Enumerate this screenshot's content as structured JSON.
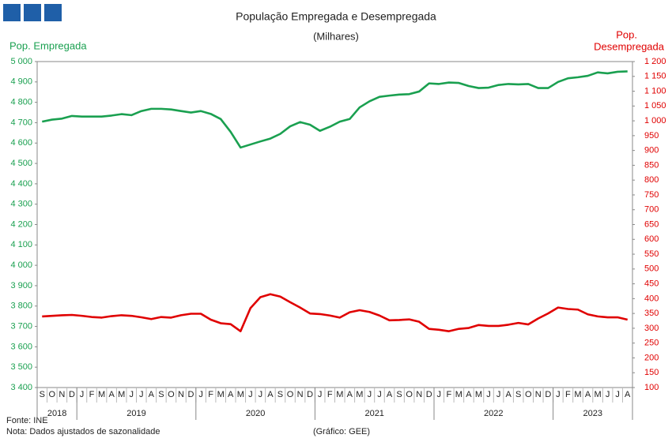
{
  "chart_data": {
    "type": "line",
    "title": "População Empregada e Desempregada",
    "subtitle": "(Milhares)",
    "y_label": "Pop. Empregada",
    "y2_label": [
      "Pop.",
      "Desempregada"
    ],
    "categories": [
      "S",
      "O",
      "N",
      "D",
      "J",
      "F",
      "M",
      "A",
      "M",
      "J",
      "J",
      "A",
      "S",
      "O",
      "N",
      "D",
      "J",
      "F",
      "M",
      "A",
      "M",
      "J",
      "J",
      "A",
      "S",
      "O",
      "N",
      "D",
      "J",
      "F",
      "M",
      "A",
      "M",
      "J",
      "J",
      "A",
      "S",
      "O",
      "N",
      "D",
      "J",
      "F",
      "M",
      "A",
      "M",
      "J",
      "J",
      "A",
      "S",
      "O",
      "N",
      "D",
      "J",
      "F",
      "M",
      "A",
      "M",
      "J",
      "J",
      "A"
    ],
    "year_labels": [
      "2018",
      "2019",
      "2020",
      "2021",
      "2022",
      "2023"
    ],
    "series": [
      {
        "name": "Pop. Empregada",
        "color": "#1aa050",
        "values": [
          4705,
          4715,
          4720,
          4733,
          4730,
          4730,
          4730,
          4735,
          4742,
          4737,
          4757,
          4768,
          4768,
          4765,
          4757,
          4750,
          4757,
          4743,
          4718,
          4655,
          4578,
          4593,
          4608,
          4622,
          4645,
          4682,
          4703,
          4690,
          4660,
          4680,
          4705,
          4718,
          4775,
          4805,
          4827,
          4833,
          4838,
          4840,
          4853,
          4893,
          4890,
          4897,
          4895,
          4880,
          4870,
          4872,
          4885,
          4890,
          4888,
          4890,
          4870,
          4870,
          4900,
          4918,
          4923,
          4930,
          4947,
          4942,
          4950,
          4952
        ]
      },
      {
        "name": "Pop. Desempregada",
        "color": "#e00000",
        "axis": "y2",
        "values": [
          340,
          342,
          344,
          345,
          342,
          338,
          336,
          341,
          344,
          342,
          337,
          331,
          338,
          336,
          344,
          349,
          349,
          329,
          317,
          314,
          290,
          368,
          405,
          415,
          407,
          388,
          370,
          350,
          348,
          343,
          336,
          354,
          361,
          355,
          343,
          327,
          328,
          330,
          322,
          298,
          295,
          290,
          298,
          301,
          311,
          308,
          308,
          312,
          318,
          313,
          333,
          350,
          370,
          365,
          363,
          347,
          340,
          337,
          337,
          329
        ]
      }
    ],
    "ylim": [
      3400,
      5000
    ],
    "yticks": [
      {
        "value": 3400,
        "label": "3 400"
      },
      {
        "value": 3500,
        "label": "3 500"
      },
      {
        "value": 3600,
        "label": "3 600"
      },
      {
        "value": 3700,
        "label": "3 700"
      },
      {
        "value": 3800,
        "label": "3 800"
      },
      {
        "value": 3900,
        "label": "3 900"
      },
      {
        "value": 4000,
        "label": "4 000"
      },
      {
        "value": 4100,
        "label": "4 100"
      },
      {
        "value": 4200,
        "label": "4 200"
      },
      {
        "value": 4300,
        "label": "4 300"
      },
      {
        "value": 4400,
        "label": "4 400"
      },
      {
        "value": 4500,
        "label": "4 500"
      },
      {
        "value": 4600,
        "label": "4 600"
      },
      {
        "value": 4700,
        "label": "4 700"
      },
      {
        "value": 4800,
        "label": "4 800"
      },
      {
        "value": 4900,
        "label": "4 900"
      },
      {
        "value": 5000,
        "label": "5 000"
      }
    ],
    "y2lim": [
      100,
      1200
    ],
    "y2ticks": [
      100,
      150,
      200,
      250,
      300,
      350,
      400,
      450,
      500,
      550,
      600,
      650,
      700,
      750,
      800,
      850,
      900,
      950,
      {
        "value": 1000,
        "label": "1 000"
      },
      {
        "value": 1050,
        "label": "1 050"
      },
      {
        "value": 1100,
        "label": "1 100"
      },
      {
        "value": 1150,
        "label": "1 150"
      },
      {
        "value": 1200,
        "label": "1 200"
      }
    ],
    "grid": false,
    "source": "Fonte: INE",
    "note": "Nota: Dados ajustados de sazonalidade",
    "credit": "(Gráfico: GEE)"
  }
}
